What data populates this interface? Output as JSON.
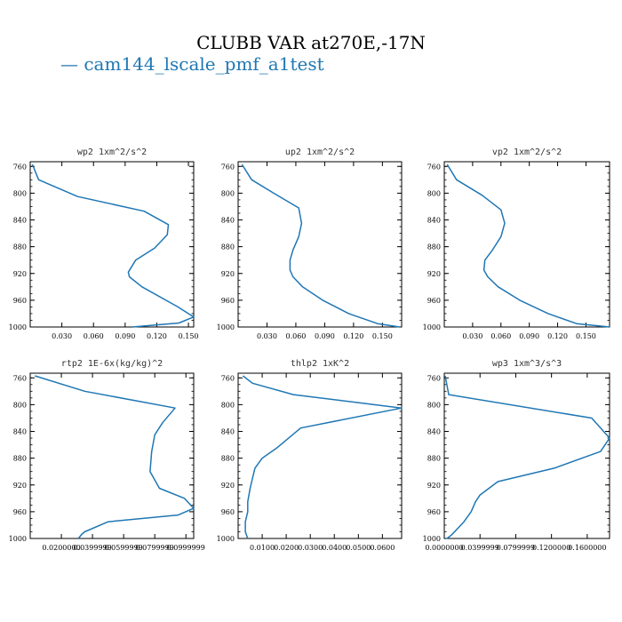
{
  "figure": {
    "title": "CLUBB VAR at270E,-17N",
    "legend_label": "cam144_lscale_pmf_a1test",
    "line_color": "#1f77b4"
  },
  "chart_data": [
    {
      "type": "line",
      "title": "wp2  1xm^2/s^2",
      "xlim": [
        0.0,
        0.155
      ],
      "ylim": [
        1000,
        753
      ],
      "xticks": [
        0.03,
        0.06,
        0.09,
        0.12,
        0.15
      ],
      "xtick_labels": [
        "0.030",
        "0.060",
        "0.090",
        "0.120",
        "0.150"
      ],
      "yticks": [
        760,
        800,
        840,
        880,
        920,
        960,
        1000
      ],
      "ytick_labels": [
        "760",
        "800",
        "840",
        "880",
        "920",
        "960",
        "1000"
      ],
      "series": [
        {
          "x": [
            0.002,
            0.008,
            0.045,
            0.108,
            0.131,
            0.13,
            0.118,
            0.1,
            0.093,
            0.094,
            0.106,
            0.14,
            0.155,
            0.141,
            0.097
          ],
          "y": [
            757,
            780,
            805,
            827,
            847,
            862,
            882,
            900,
            918,
            925,
            940,
            970,
            985,
            994,
            1000
          ]
        }
      ]
    },
    {
      "type": "line",
      "title": "up2  1xm^2/s^2",
      "xlim": [
        0.0,
        0.17
      ],
      "ylim": [
        1000,
        753
      ],
      "xticks": [
        0.03,
        0.06,
        0.09,
        0.12,
        0.15
      ],
      "xtick_labels": [
        "0.030",
        "0.060",
        "0.090",
        "0.120",
        "0.150"
      ],
      "yticks": [
        760,
        800,
        840,
        880,
        920,
        960,
        1000
      ],
      "ytick_labels": [
        "760",
        "800",
        "840",
        "880",
        "920",
        "960",
        "1000"
      ],
      "series": [
        {
          "x": [
            0.004,
            0.014,
            0.037,
            0.063,
            0.066,
            0.063,
            0.057,
            0.054,
            0.054,
            0.057,
            0.067,
            0.088,
            0.115,
            0.145,
            0.168
          ],
          "y": [
            757,
            780,
            800,
            822,
            845,
            865,
            885,
            900,
            915,
            925,
            940,
            960,
            980,
            995,
            1000
          ]
        }
      ]
    },
    {
      "type": "line",
      "title": "vp2  1xm^2/s^2",
      "xlim": [
        0.0,
        0.175
      ],
      "ylim": [
        1000,
        753
      ],
      "xticks": [
        0.03,
        0.06,
        0.09,
        0.12,
        0.15
      ],
      "xtick_labels": [
        "0.030",
        "0.060",
        "0.090",
        "0.120",
        "0.150"
      ],
      "yticks": [
        760,
        800,
        840,
        880,
        920,
        960,
        1000
      ],
      "ytick_labels": [
        "760",
        "800",
        "840",
        "880",
        "920",
        "960",
        "1000"
      ],
      "series": [
        {
          "x": [
            0.003,
            0.013,
            0.04,
            0.06,
            0.064,
            0.06,
            0.051,
            0.043,
            0.042,
            0.046,
            0.057,
            0.08,
            0.11,
            0.14,
            0.175
          ],
          "y": [
            757,
            780,
            803,
            825,
            845,
            865,
            885,
            900,
            915,
            925,
            940,
            960,
            980,
            995,
            1000
          ]
        }
      ]
    },
    {
      "type": "line",
      "title": "rtp2  1E-6x(kg/kg)^2",
      "xlim": [
        0.0,
        0.105
      ],
      "ylim": [
        1000,
        753
      ],
      "xticks": [
        0.02,
        0.04,
        0.06,
        0.08,
        0.1
      ],
      "xtick_labels": [
        "0.0200000",
        "0.0399999",
        "0.0599999",
        "0.0799999",
        "0.0999999"
      ],
      "yticks": [
        760,
        800,
        840,
        880,
        920,
        960,
        1000
      ],
      "ytick_labels": [
        "760",
        "800",
        "840",
        "880",
        "920",
        "960",
        "1000"
      ],
      "series": [
        {
          "x": [
            0.003,
            0.035,
            0.093,
            0.085,
            0.08,
            0.078,
            0.077,
            0.083,
            0.099,
            0.105,
            0.095,
            0.05,
            0.035,
            0.033,
            0.031
          ],
          "y": [
            757,
            780,
            805,
            827,
            845,
            870,
            900,
            925,
            940,
            955,
            965,
            975,
            990,
            994,
            1000
          ]
        }
      ]
    },
    {
      "type": "line",
      "title": "thlp2  1xK^2",
      "xlim": [
        0.0,
        0.068
      ],
      "ylim": [
        1000,
        753
      ],
      "xticks": [
        0.01,
        0.02,
        0.03,
        0.04,
        0.05,
        0.06
      ],
      "xtick_labels": [
        "0.0100",
        "0.0200",
        "0.0300",
        "0.0400",
        "0.0500",
        "0.0600"
      ],
      "yticks": [
        760,
        800,
        840,
        880,
        920,
        960,
        1000
      ],
      "ytick_labels": [
        "760",
        "800",
        "840",
        "880",
        "920",
        "960",
        "1000"
      ],
      "series": [
        {
          "x": [
            0.002,
            0.006,
            0.023,
            0.068,
            0.026,
            0.016,
            0.01,
            0.007,
            0.006,
            0.005,
            0.004,
            0.004,
            0.003,
            0.003,
            0.004
          ],
          "y": [
            757,
            768,
            785,
            805,
            835,
            865,
            880,
            895,
            910,
            925,
            945,
            960,
            975,
            990,
            1000
          ]
        }
      ]
    },
    {
      "type": "line",
      "title": "wp3  1xm^3/s^3",
      "xlim": [
        0.0,
        0.185
      ],
      "ylim": [
        1000,
        753
      ],
      "xticks": [
        0.0,
        0.04,
        0.08,
        0.12,
        0.16
      ],
      "xtick_labels": [
        "0.0000000",
        "0.0399999",
        "0.0799999",
        "0.1200000",
        "0.1600000"
      ],
      "yticks": [
        760,
        800,
        840,
        880,
        920,
        960,
        1000
      ],
      "ytick_labels": [
        "760",
        "800",
        "840",
        "880",
        "920",
        "960",
        "1000"
      ],
      "series": [
        {
          "x": [
            0.001,
            0.005,
            0.165,
            0.185,
            0.175,
            0.123,
            0.06,
            0.04,
            0.035,
            0.03,
            0.022,
            0.015,
            0.008,
            0.003,
            0.001
          ],
          "y": [
            757,
            785,
            820,
            850,
            870,
            895,
            915,
            935,
            945,
            960,
            975,
            985,
            995,
            1000,
            1000
          ]
        }
      ]
    }
  ]
}
